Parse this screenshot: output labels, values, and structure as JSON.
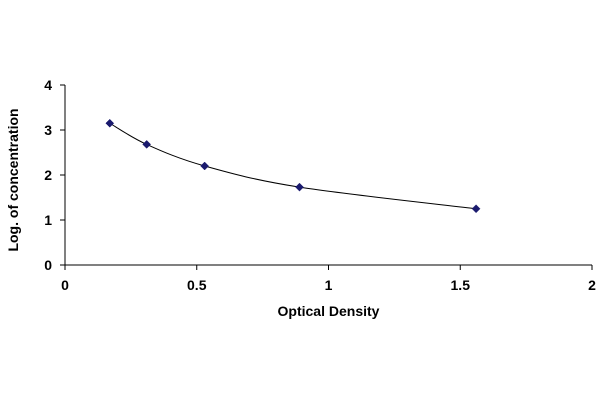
{
  "chart_data": {
    "type": "scatter",
    "title": "",
    "xlabel": "Optical Density",
    "ylabel": "Log. of concentration",
    "xlim": [
      0,
      2
    ],
    "ylim": [
      0,
      4
    ],
    "x_ticks": [
      0,
      0.5,
      1,
      1.5,
      2
    ],
    "y_ticks": [
      0,
      1,
      2,
      3,
      4
    ],
    "x_tick_labels": [
      "0",
      "0.5",
      "1",
      "1.5",
      "2"
    ],
    "y_tick_labels": [
      "0",
      "1",
      "2",
      "3",
      "4"
    ],
    "grid": false,
    "legend": "none",
    "fit_line": "smooth curve through points",
    "series": [
      {
        "marker": "diamond",
        "color": "#1a1a6e",
        "points": [
          {
            "x": 0.17,
            "y": 3.15
          },
          {
            "x": 0.31,
            "y": 2.68
          },
          {
            "x": 0.53,
            "y": 2.2
          },
          {
            "x": 0.89,
            "y": 1.73
          },
          {
            "x": 1.56,
            "y": 1.25
          }
        ]
      }
    ]
  }
}
